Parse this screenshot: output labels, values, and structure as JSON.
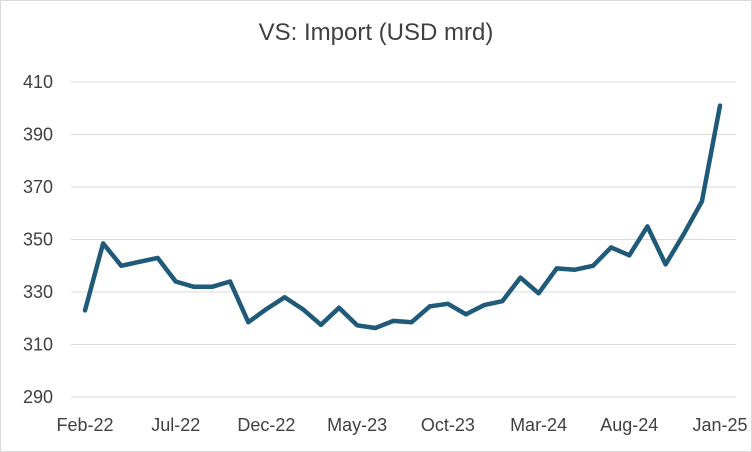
{
  "chart_data": {
    "type": "line",
    "title": "VS: Import (USD mrd)",
    "xlabel": "",
    "ylabel": "",
    "ylim": [
      290,
      410
    ],
    "yticks": [
      290,
      310,
      330,
      350,
      370,
      390,
      410
    ],
    "x_tick_labels": [
      "Feb-22",
      "Jul-22",
      "Dec-22",
      "May-23",
      "Oct-23",
      "Mar-24",
      "Aug-24",
      "Jan-25"
    ],
    "x": [
      "Feb-22",
      "Mar-22",
      "Apr-22",
      "May-22",
      "Jun-22",
      "Jul-22",
      "Aug-22",
      "Sep-22",
      "Oct-22",
      "Nov-22",
      "Dec-22",
      "Jan-23",
      "Feb-23",
      "Mar-23",
      "Apr-23",
      "May-23",
      "Jun-23",
      "Jul-23",
      "Aug-23",
      "Sep-23",
      "Oct-23",
      "Nov-23",
      "Dec-23",
      "Jan-24",
      "Feb-24",
      "Mar-24",
      "Apr-24",
      "May-24",
      "Jun-24",
      "Jul-24",
      "Aug-24",
      "Sep-24",
      "Oct-24",
      "Nov-24",
      "Dec-24",
      "Jan-25"
    ],
    "series": [
      {
        "name": "",
        "color": "#1f5a78",
        "values": [
          323,
          348.5,
          340,
          341.5,
          343,
          334,
          332,
          332,
          334,
          318.5,
          323.5,
          328,
          323.5,
          317.5,
          324,
          317.3,
          316.3,
          319,
          318.5,
          324.5,
          325.5,
          321.5,
          325,
          326.5,
          335.5,
          329.5,
          339,
          338.5,
          340,
          347,
          344,
          355,
          340.5,
          352,
          364.5,
          401
        ]
      }
    ],
    "grid": true,
    "legend": "none"
  }
}
